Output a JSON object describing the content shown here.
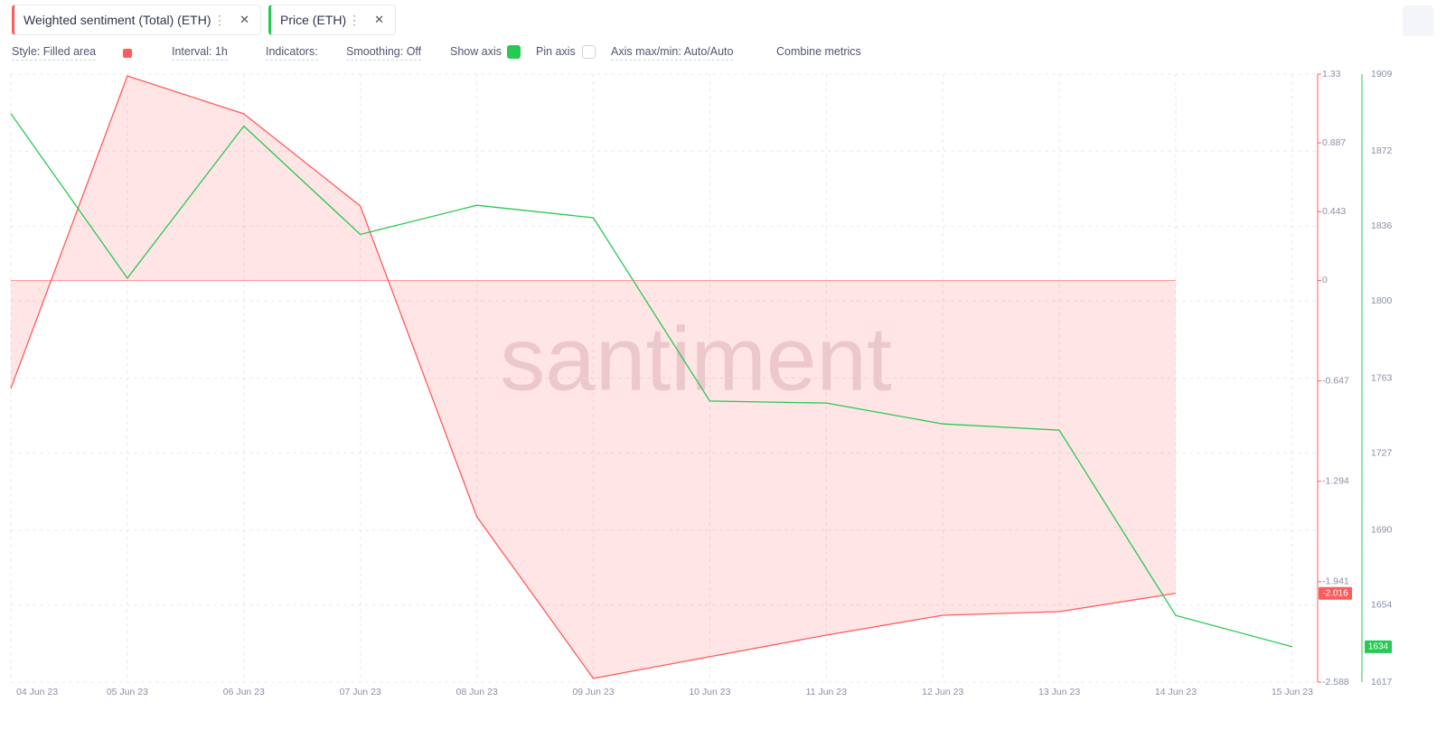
{
  "toolbar": {
    "style": "Style: Filled area",
    "interval": "Interval: 1h",
    "indicators": "Indicators:",
    "smoothing": "Smoothing: Off",
    "show_axis": "Show axis",
    "pin_axis": "Pin axis",
    "axis_maxmin": "Axis max/min: Auto/Auto",
    "combine": "Combine metrics"
  },
  "chart_data": {
    "type": "line",
    "watermark": "santiment",
    "categories": [
      "04 Jun 23",
      "05 Jun 23",
      "06 Jun 23",
      "07 Jun 23",
      "08 Jun 23",
      "09 Jun 23",
      "10 Jun 23",
      "11 Jun 23",
      "12 Jun 23",
      "13 Jun 23",
      "14 Jun 23",
      "15 Jun 23"
    ],
    "series": [
      {
        "name": "Weighted sentiment (Total) (ETH)",
        "color": "#ff5b5b",
        "fill": true,
        "axis": "y",
        "values": [
          -0.696,
          1.318,
          1.074,
          0.48,
          -1.522,
          -2.564,
          -2.424,
          -2.285,
          -2.157,
          -2.134,
          -2.016,
          null
        ]
      },
      {
        "name": "Price (ETH)",
        "color": "#26c953",
        "axis": "y2",
        "values": [
          1890,
          1811,
          1884,
          1832,
          1846,
          1840,
          1752,
          1751,
          1741,
          1738,
          1649,
          1634
        ]
      }
    ],
    "ylim": [
      -2.588,
      1.33
    ],
    "yticks": [
      1.33,
      0.887,
      0.443,
      0,
      -0.647,
      -1.294,
      -1.941,
      -2.588
    ],
    "y2lim": [
      1617,
      1909
    ],
    "y2ticks": [
      1909,
      1872,
      1836,
      1800,
      1763,
      1727,
      1690,
      1654,
      1617
    ],
    "grid": true
  }
}
